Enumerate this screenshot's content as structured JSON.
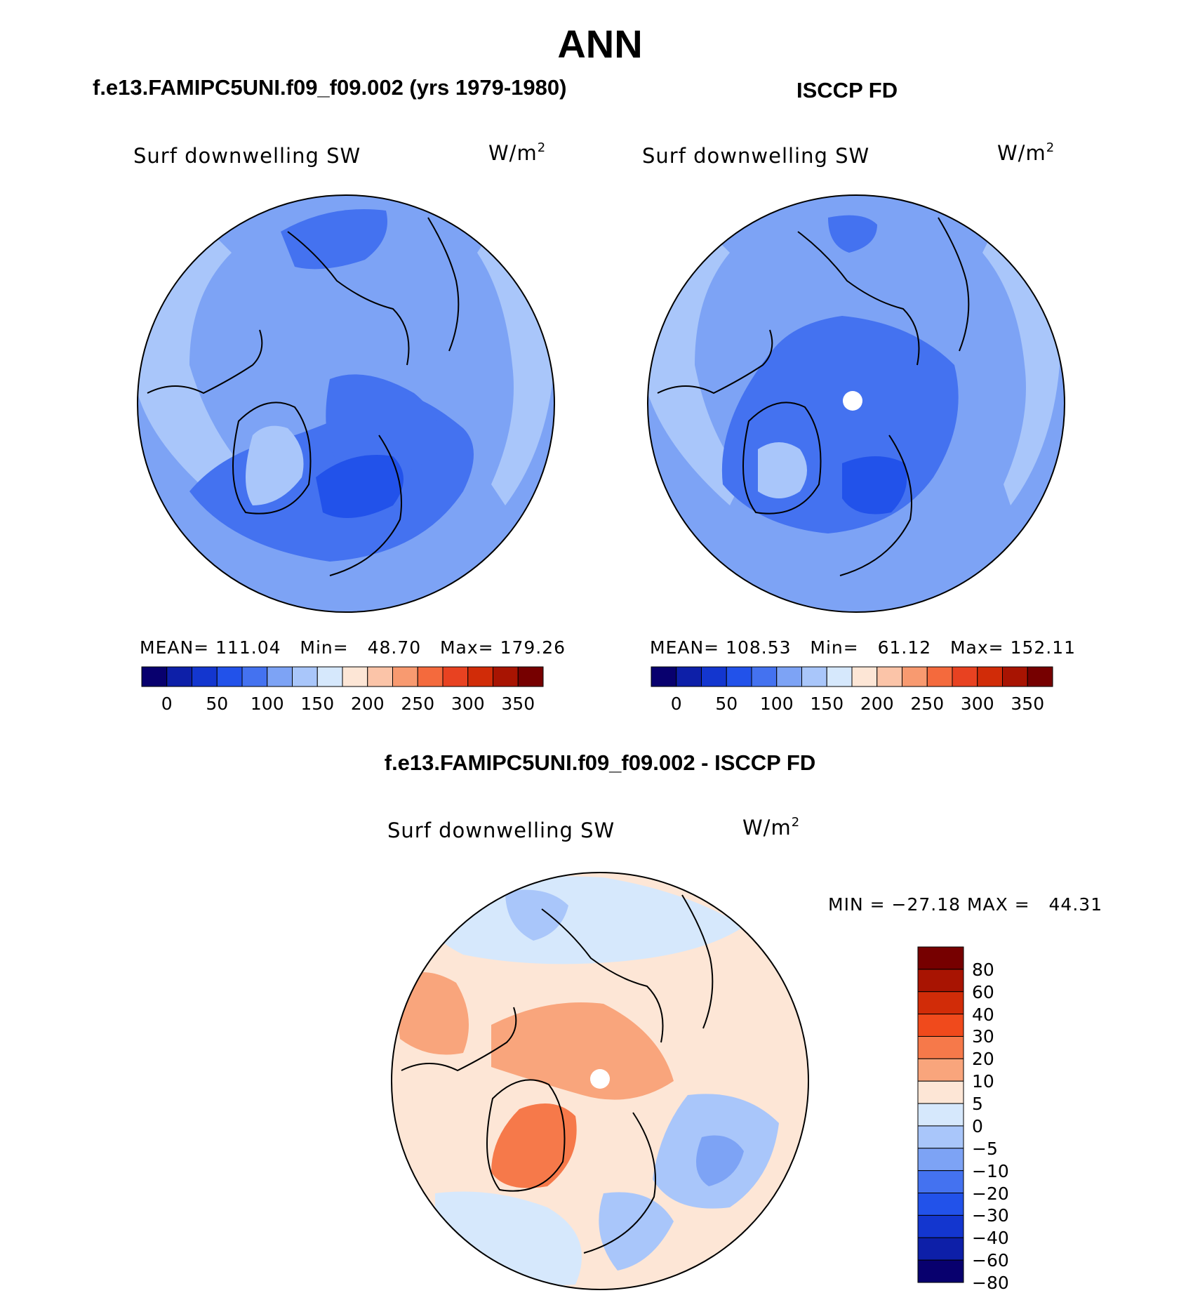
{
  "title": "ANN",
  "panels": [
    {
      "heading": "f.e13.FAMIPC5UNI.f09_f09.002 (yrs 1979-1980)",
      "variable": "Surf downwelling SW",
      "units_base": "W/m",
      "units_exp": "2",
      "mean_label": "MEAN=",
      "mean": "111.04",
      "min_label": "Min=",
      "min": "48.70",
      "max_label": "Max=",
      "max": "179.26"
    },
    {
      "heading": "ISCCP FD",
      "variable": "Surf downwelling SW",
      "units_base": "W/m",
      "units_exp": "2",
      "mean_label": "MEAN=",
      "mean": "108.53",
      "min_label": "Min=",
      "min": "61.12",
      "max_label": "Max=",
      "max": "152.11"
    }
  ],
  "difference": {
    "heading": "f.e13.FAMIPC5UNI.f09_f09.002 - ISCCP FD",
    "variable": "Surf downwelling SW",
    "units_base": "W/m",
    "units_exp": "2",
    "min_label": "MIN =",
    "min": "−27.18",
    "max_label": "MAX =",
    "max": "44.31"
  },
  "colorbar_abs": {
    "colors": [
      "#08006e",
      "#0d1fa8",
      "#1336cf",
      "#2252ea",
      "#4472f0",
      "#7da3f5",
      "#a9c6fa",
      "#d6e8fc",
      "#fde6d6",
      "#fbc4a8",
      "#f89a70",
      "#f46a3d",
      "#e84221",
      "#d12c08",
      "#a81402",
      "#760000"
    ],
    "ticks": [
      "0",
      "50",
      "100",
      "150",
      "200",
      "250",
      "300",
      "350"
    ]
  },
  "colorbar_diff": {
    "colors": [
      "#760000",
      "#a81402",
      "#d12c08",
      "#f04a1c",
      "#f6794a",
      "#f9a57c",
      "#fde6d6",
      "#d6e8fc",
      "#a9c6fa",
      "#7da3f5",
      "#4472f0",
      "#2252ea",
      "#1336cf",
      "#0d1fa8",
      "#08006e"
    ],
    "ticks": [
      "80",
      "60",
      "40",
      "30",
      "20",
      "10",
      "5",
      "0",
      "−5",
      "−10",
      "−20",
      "−30",
      "−40",
      "−60",
      "−80"
    ]
  },
  "map_colors": {
    "level_100_150": "#7da3f5",
    "level_50_100": "#4472f0",
    "level_150_200": "#a9c6fa",
    "level_low": "#2252ea",
    "diff_pos_small": "#fde6d6",
    "diff_pos_mid": "#f9a57c",
    "diff_pos_high": "#f6794a",
    "diff_neg_small": "#d6e8fc",
    "diff_neg_mid": "#a9c6fa",
    "diff_neg_high": "#7da3f5"
  }
}
